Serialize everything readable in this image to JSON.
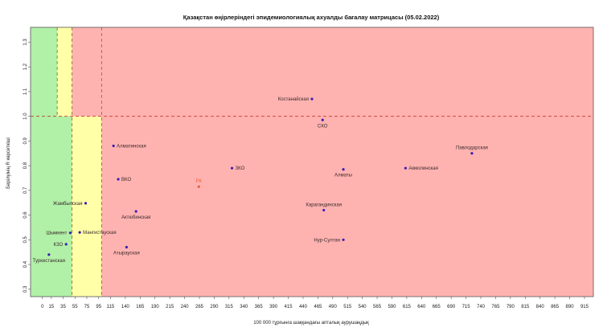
{
  "chart_data": {
    "type": "scatter",
    "title": "Қазақстан өңірлеріндегі эпидемиологиялық ахуалды бағалау матрицасы  (05.02.2022)",
    "xlabel": "100 000 тұрғынға шаққандағы апталық аурушаңдық",
    "ylabel": "Берілуінің R көрсеткіші",
    "xlim": [
      -20,
      930
    ],
    "ylim": [
      0.27,
      1.36
    ],
    "x_ticks": [
      0,
      15,
      35,
      55,
      75,
      95,
      115,
      140,
      165,
      190,
      215,
      240,
      265,
      290,
      315,
      340,
      365,
      390,
      415,
      440,
      465,
      490,
      515,
      540,
      565,
      590,
      615,
      640,
      665,
      690,
      715,
      740,
      765,
      790,
      815,
      840,
      865,
      890,
      915
    ],
    "y_ticks": [
      0.3,
      0.4,
      0.5,
      0.6,
      0.7,
      0.8,
      0.9,
      1.0,
      1.1,
      1.2,
      1.3
    ],
    "zones": [
      {
        "name": "green",
        "color": "#b1f0a7",
        "x": [
          -20,
          50
        ],
        "y": [
          0.27,
          1.36
        ]
      },
      {
        "name": "yellow",
        "color": "#ffffa8",
        "x": [
          50,
          100
        ],
        "y": [
          0.27,
          1.0
        ]
      },
      {
        "name": "yellow",
        "color": "#ffffa8",
        "x": [
          25,
          50
        ],
        "y": [
          1.0,
          1.36
        ]
      },
      {
        "name": "red",
        "color": "#ffb3b1",
        "x": [
          100,
          930
        ],
        "y": [
          0.27,
          1.36
        ]
      },
      {
        "name": "red",
        "color": "#ffb3b1",
        "x": [
          50,
          100
        ],
        "y": [
          1.0,
          1.36
        ]
      }
    ],
    "reference_lines": [
      {
        "axis": "y",
        "value": 1.0,
        "color": "#c0392b"
      },
      {
        "axis": "x",
        "value": 50,
        "color": "#8a7a2a"
      },
      {
        "axis": "x",
        "value": 100,
        "color": "#8a7a2a"
      },
      {
        "axis": "x",
        "value": 25,
        "color": "#8a7a2a",
        "from": 1.0,
        "to": 1.36
      }
    ],
    "grid": false,
    "points": [
      {
        "label": "Костанайская",
        "x": 455,
        "y": 1.07,
        "color": "#3a1fb5",
        "label_pos": "left"
      },
      {
        "label": "СКО",
        "x": 473,
        "y": 0.985,
        "color": "#3a1fb5",
        "label_pos": "below"
      },
      {
        "label": "Павлодарская",
        "x": 725,
        "y": 0.85,
        "color": "#3a1fb5",
        "label_pos": "above"
      },
      {
        "label": "Акмолинская",
        "x": 613,
        "y": 0.79,
        "color": "#3a1fb5",
        "label_pos": "right"
      },
      {
        "label": "ЗКО",
        "x": 320,
        "y": 0.79,
        "color": "#3a1fb5",
        "label_pos": "right"
      },
      {
        "label": "Алматы",
        "x": 508,
        "y": 0.785,
        "color": "#3a1fb5",
        "label_pos": "below"
      },
      {
        "label": "Алматинская",
        "x": 120,
        "y": 0.88,
        "color": "#3a1fb5",
        "label_pos": "right"
      },
      {
        "label": "ВКО",
        "x": 128,
        "y": 0.745,
        "color": "#3a1fb5",
        "label_pos": "right"
      },
      {
        "label": "РК",
        "x": 264,
        "y": 0.715,
        "color": "#e8603a",
        "label_pos": "above",
        "label_color": "#e8603a"
      },
      {
        "label": "Жамбылская",
        "x": 73,
        "y": 0.648,
        "color": "#3a1fb5",
        "label_pos": "left"
      },
      {
        "label": "Актюбинская",
        "x": 158,
        "y": 0.615,
        "color": "#3a1fb5",
        "label_pos": "below"
      },
      {
        "label": "Карагандинская",
        "x": 475,
        "y": 0.62,
        "color": "#3a1fb5",
        "label_pos": "above"
      },
      {
        "label": "Шымкент",
        "x": 47,
        "y": 0.528,
        "color": "#3a1fb5",
        "label_pos": "left"
      },
      {
        "label": "Мангистауская",
        "x": 63,
        "y": 0.53,
        "color": "#3a1fb5",
        "label_pos": "right"
      },
      {
        "label": "КЗО",
        "x": 40,
        "y": 0.482,
        "color": "#3a1fb5",
        "label_pos": "left"
      },
      {
        "label": "Нур-Султан",
        "x": 508,
        "y": 0.5,
        "color": "#3a1fb5",
        "label_pos": "left"
      },
      {
        "label": "Атырауская",
        "x": 142,
        "y": 0.47,
        "color": "#3a1fb5",
        "label_pos": "below"
      },
      {
        "label": "Туркестанская",
        "x": 11,
        "y": 0.44,
        "color": "#3a1fb5",
        "label_pos": "below"
      }
    ]
  }
}
